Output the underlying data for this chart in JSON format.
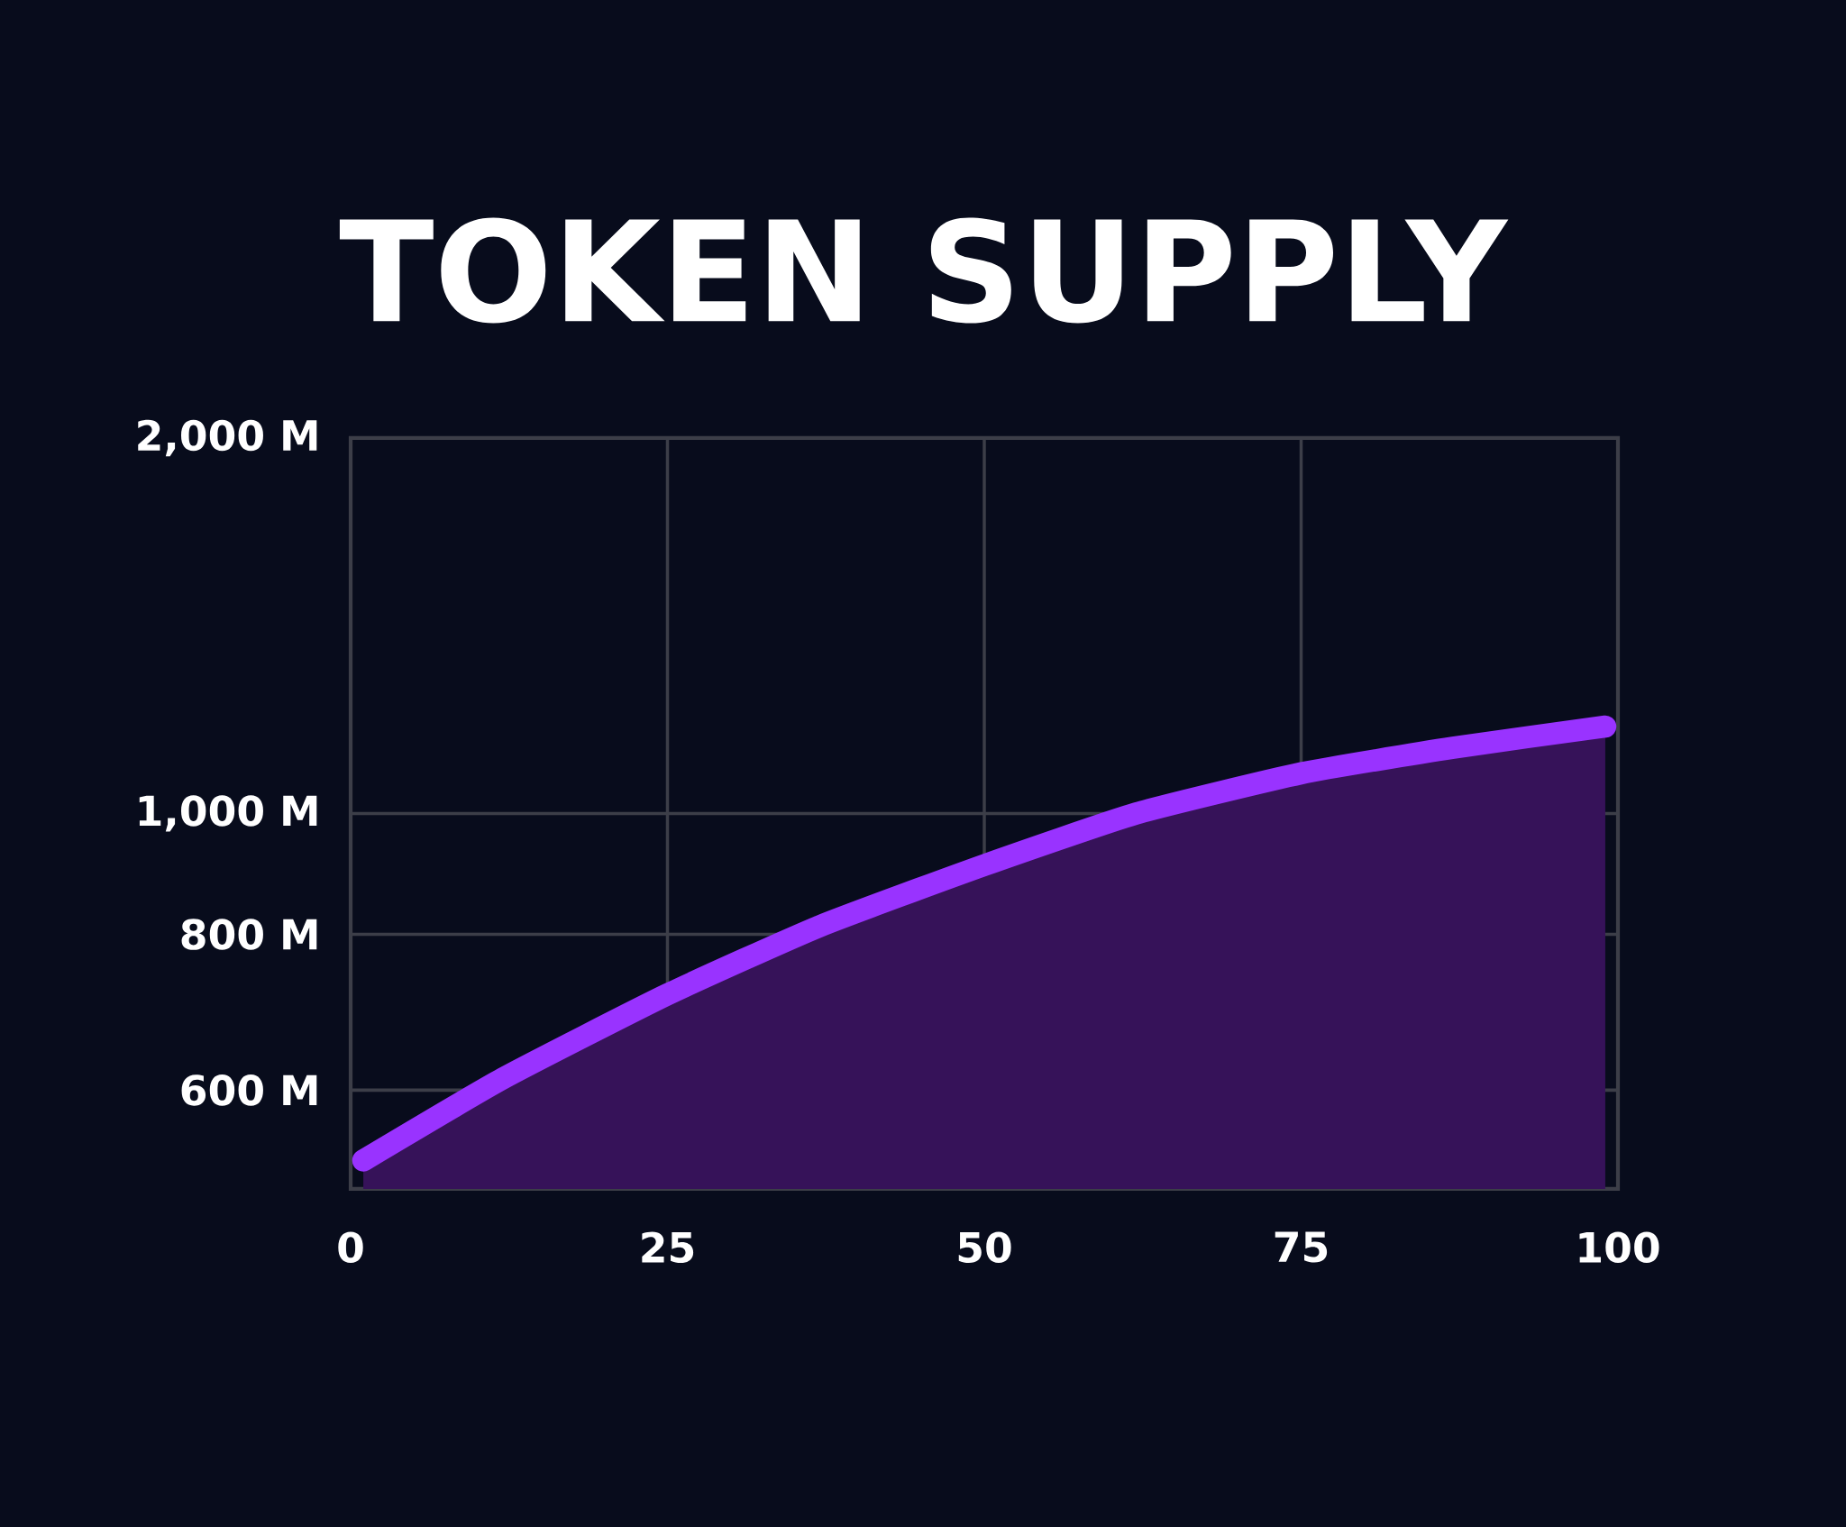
{
  "chart_data": {
    "type": "area",
    "title": "TOKEN SUPPLY",
    "x": [
      1,
      12,
      25,
      37,
      50,
      62,
      75,
      87,
      99
    ],
    "series": [
      {
        "color": "#9933ff",
        "values": [
          527,
          613,
          716,
          812,
          909,
          1000,
          1077,
          1129,
          1174
        ]
      }
    ],
    "log": "y",
    "xlim": [
      0,
      100
    ],
    "xticks": [
      0,
      25,
      50,
      75,
      100
    ],
    "ylim": [
      500,
      2000
    ],
    "yticks": [
      {
        "value": 600,
        "label": "600 M"
      },
      {
        "value": 800,
        "label": "800 M"
      },
      {
        "value": 1000,
        "label": "1,000 M"
      },
      {
        "value": 2000,
        "label": "2,000 M"
      }
    ],
    "grid": true
  }
}
